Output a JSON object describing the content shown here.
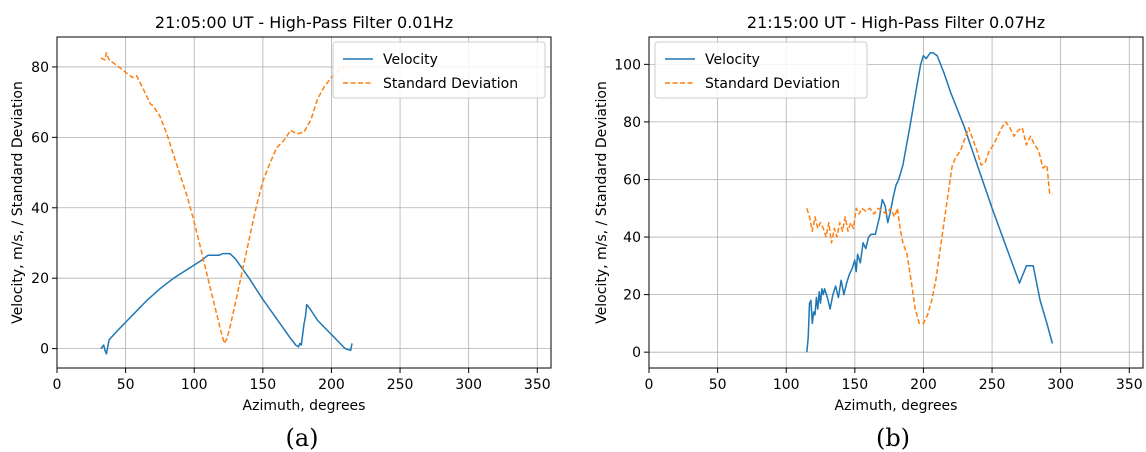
{
  "figure": {
    "captions": [
      "(a)",
      "(b)"
    ]
  },
  "chart_data": [
    {
      "type": "line",
      "title": "21:05:00 UT - High-Pass Filter 0.01Hz",
      "xlabel": "Azimuth, degrees",
      "ylabel": "Velocity, m/s, / Standard Deviation",
      "xlim": [
        0,
        360
      ],
      "ylim": [
        -5.5,
        88.5
      ],
      "xticks": [
        0,
        50,
        100,
        150,
        200,
        250,
        300,
        350
      ],
      "yticks": [
        0,
        20,
        40,
        60,
        80
      ],
      "grid": true,
      "legend_position": "top-right",
      "series": [
        {
          "name": "Velocity",
          "color": "#1f77b4",
          "style": "solid",
          "x": [
            32,
            34,
            35,
            36,
            38,
            45,
            55,
            65,
            75,
            85,
            95,
            105,
            110,
            115,
            118,
            121,
            123,
            126,
            130,
            140,
            150,
            160,
            170,
            174,
            176,
            177,
            178,
            180,
            181,
            182,
            184,
            190,
            200,
            210,
            214,
            215
          ],
          "y": [
            0,
            1,
            -0.5,
            -1.5,
            2.5,
            5.5,
            9.5,
            13.5,
            17,
            20,
            22.5,
            25,
            26.5,
            26.5,
            26.5,
            27,
            27,
            27,
            25.5,
            20,
            14,
            8.5,
            3,
            1,
            0.5,
            1.5,
            1,
            7,
            9,
            12.5,
            11.5,
            8,
            4,
            0,
            -0.5,
            1.5
          ]
        },
        {
          "name": "Standard Deviation",
          "color": "#ff7f0e",
          "style": "dashed",
          "x": [
            32,
            35,
            36,
            38,
            45,
            50,
            55,
            58,
            60,
            65,
            68,
            70,
            75,
            80,
            85,
            90,
            95,
            100,
            105,
            110,
            115,
            120,
            122,
            124,
            126,
            130,
            135,
            140,
            145,
            150,
            155,
            160,
            165,
            167,
            170,
            175,
            180,
            185,
            190,
            195,
            200,
            205,
            210
          ],
          "y": [
            82.5,
            82,
            84,
            82,
            80,
            78.5,
            77,
            77.5,
            76,
            72,
            69.5,
            69,
            66,
            61,
            55,
            49,
            43,
            36,
            28,
            20,
            12,
            4,
            1.5,
            3,
            6,
            13,
            22,
            31,
            40,
            47.5,
            52.5,
            57,
            59,
            60,
            62,
            61,
            61.5,
            65,
            71,
            74.5,
            77,
            79,
            80
          ]
        }
      ]
    },
    {
      "type": "line",
      "title": "21:15:00 UT - High-Pass Filter 0.07Hz",
      "xlabel": "Azimuth, degrees",
      "ylabel": "Velocity, m/s, / Standard Deviation",
      "xlim": [
        0,
        360
      ],
      "ylim": [
        -5.5,
        109.5
      ],
      "xticks": [
        0,
        50,
        100,
        150,
        200,
        250,
        300,
        350
      ],
      "yticks": [
        0,
        20,
        40,
        60,
        80,
        100
      ],
      "grid": true,
      "legend_position": "top-left",
      "series": [
        {
          "name": "Velocity",
          "color": "#1f77b4",
          "style": "solid",
          "x": [
            115,
            116,
            117,
            118,
            119,
            120,
            121,
            122,
            123,
            124,
            125,
            126,
            127,
            128,
            130,
            132,
            134,
            136,
            138,
            140,
            142,
            144,
            146,
            148,
            150,
            151,
            152,
            154,
            156,
            158,
            160,
            162,
            165,
            168,
            170,
            172,
            174,
            176,
            178,
            180,
            182,
            185,
            190,
            195,
            198,
            200,
            202,
            205,
            207,
            210,
            215,
            220,
            230,
            240,
            250,
            260,
            270,
            275,
            280,
            285,
            290,
            294
          ],
          "y": [
            0,
            5,
            17,
            18,
            10,
            14,
            13,
            19,
            15,
            21,
            17,
            22,
            20,
            22,
            19,
            15,
            20,
            23,
            19,
            25,
            20,
            24,
            27,
            29,
            32,
            28,
            34,
            31,
            38,
            36,
            40,
            41,
            41,
            47,
            53,
            51,
            45,
            49,
            54,
            58,
            60,
            65,
            78,
            92,
            100,
            103,
            102,
            104,
            104,
            103,
            97,
            90,
            78,
            64,
            50,
            37,
            24,
            30,
            30,
            18,
            10,
            3
          ]
        },
        {
          "name": "Standard Deviation",
          "color": "#ff7f0e",
          "style": "dashed",
          "x": [
            115,
            117,
            119,
            121,
            123,
            125,
            127,
            129,
            131,
            133,
            135,
            137,
            139,
            141,
            143,
            145,
            147,
            149,
            151,
            153,
            155,
            158,
            161,
            164,
            167,
            170,
            173,
            176,
            179,
            181,
            183,
            185,
            188,
            191,
            194,
            197,
            200,
            203,
            206,
            209,
            212,
            215,
            218,
            221,
            224,
            227,
            230,
            233,
            236,
            239,
            242,
            245,
            248,
            251,
            254,
            257,
            260,
            263,
            266,
            269,
            272,
            275,
            278,
            281,
            284,
            287,
            290,
            292,
            294
          ],
          "y": [
            50,
            47,
            42,
            47,
            43,
            45,
            43,
            40,
            45,
            38,
            43,
            40,
            45,
            42,
            47,
            42,
            45,
            43,
            50,
            48,
            50,
            49,
            50,
            48,
            50,
            49,
            48,
            50,
            47,
            50,
            43,
            38,
            34,
            25,
            15,
            10,
            10,
            13,
            18,
            25,
            35,
            45,
            55,
            65,
            68,
            70,
            74,
            78,
            74,
            70,
            65,
            66,
            70,
            72,
            75,
            78,
            80,
            78,
            75,
            77,
            78,
            72,
            75,
            72,
            70,
            64,
            65,
            55,
            55
          ]
        }
      ]
    }
  ]
}
